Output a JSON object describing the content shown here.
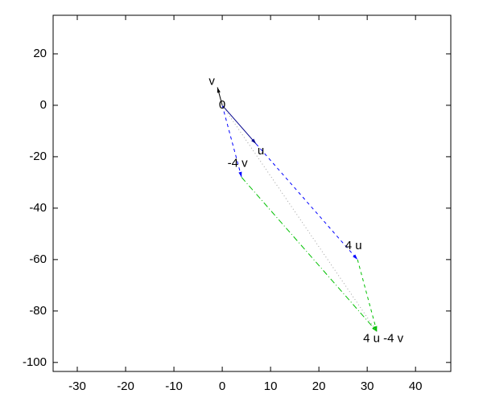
{
  "chart_data": {
    "type": "vector",
    "xlim": [
      -35,
      47.3
    ],
    "ylim": [
      -103.5,
      35
    ],
    "xticks": [
      -30,
      -20,
      -10,
      0,
      10,
      20,
      30,
      40
    ],
    "yticks": [
      -100,
      -80,
      -60,
      -40,
      -20,
      0,
      20
    ],
    "points": [
      {
        "label": "0",
        "x": 0,
        "y": 0
      },
      {
        "label": "u",
        "x": 7,
        "y": -15
      },
      {
        "label": "v",
        "x": -1,
        "y": 7
      },
      {
        "label": "-4 v",
        "x": 4,
        "y": -28
      },
      {
        "label": "4 u",
        "x": 28,
        "y": -60
      },
      {
        "label": "4 u -4 v",
        "x": 32,
        "y": -88
      }
    ],
    "segments": [
      {
        "from": 0,
        "to": 1,
        "color": "#00008b",
        "dash": "solid",
        "arrow": true
      },
      {
        "from": 0,
        "to": 2,
        "color": "#000000",
        "dash": "solid",
        "arrow": true
      },
      {
        "from": 0,
        "to": 3,
        "color": "#0000ff",
        "dash": "dashed",
        "arrow": true
      },
      {
        "from": 1,
        "to": 4,
        "color": "#0000ff",
        "dash": "dashed",
        "arrow": true
      },
      {
        "from": 3,
        "to": 5,
        "color": "#00c000",
        "dash": "dashdot",
        "arrow": true
      },
      {
        "from": 4,
        "to": 5,
        "color": "#00c000",
        "dash": "dashed",
        "arrow": true
      },
      {
        "from": 0,
        "to": 5,
        "color": "#a0a0a0",
        "dash": "dotted",
        "arrow": false
      }
    ]
  }
}
